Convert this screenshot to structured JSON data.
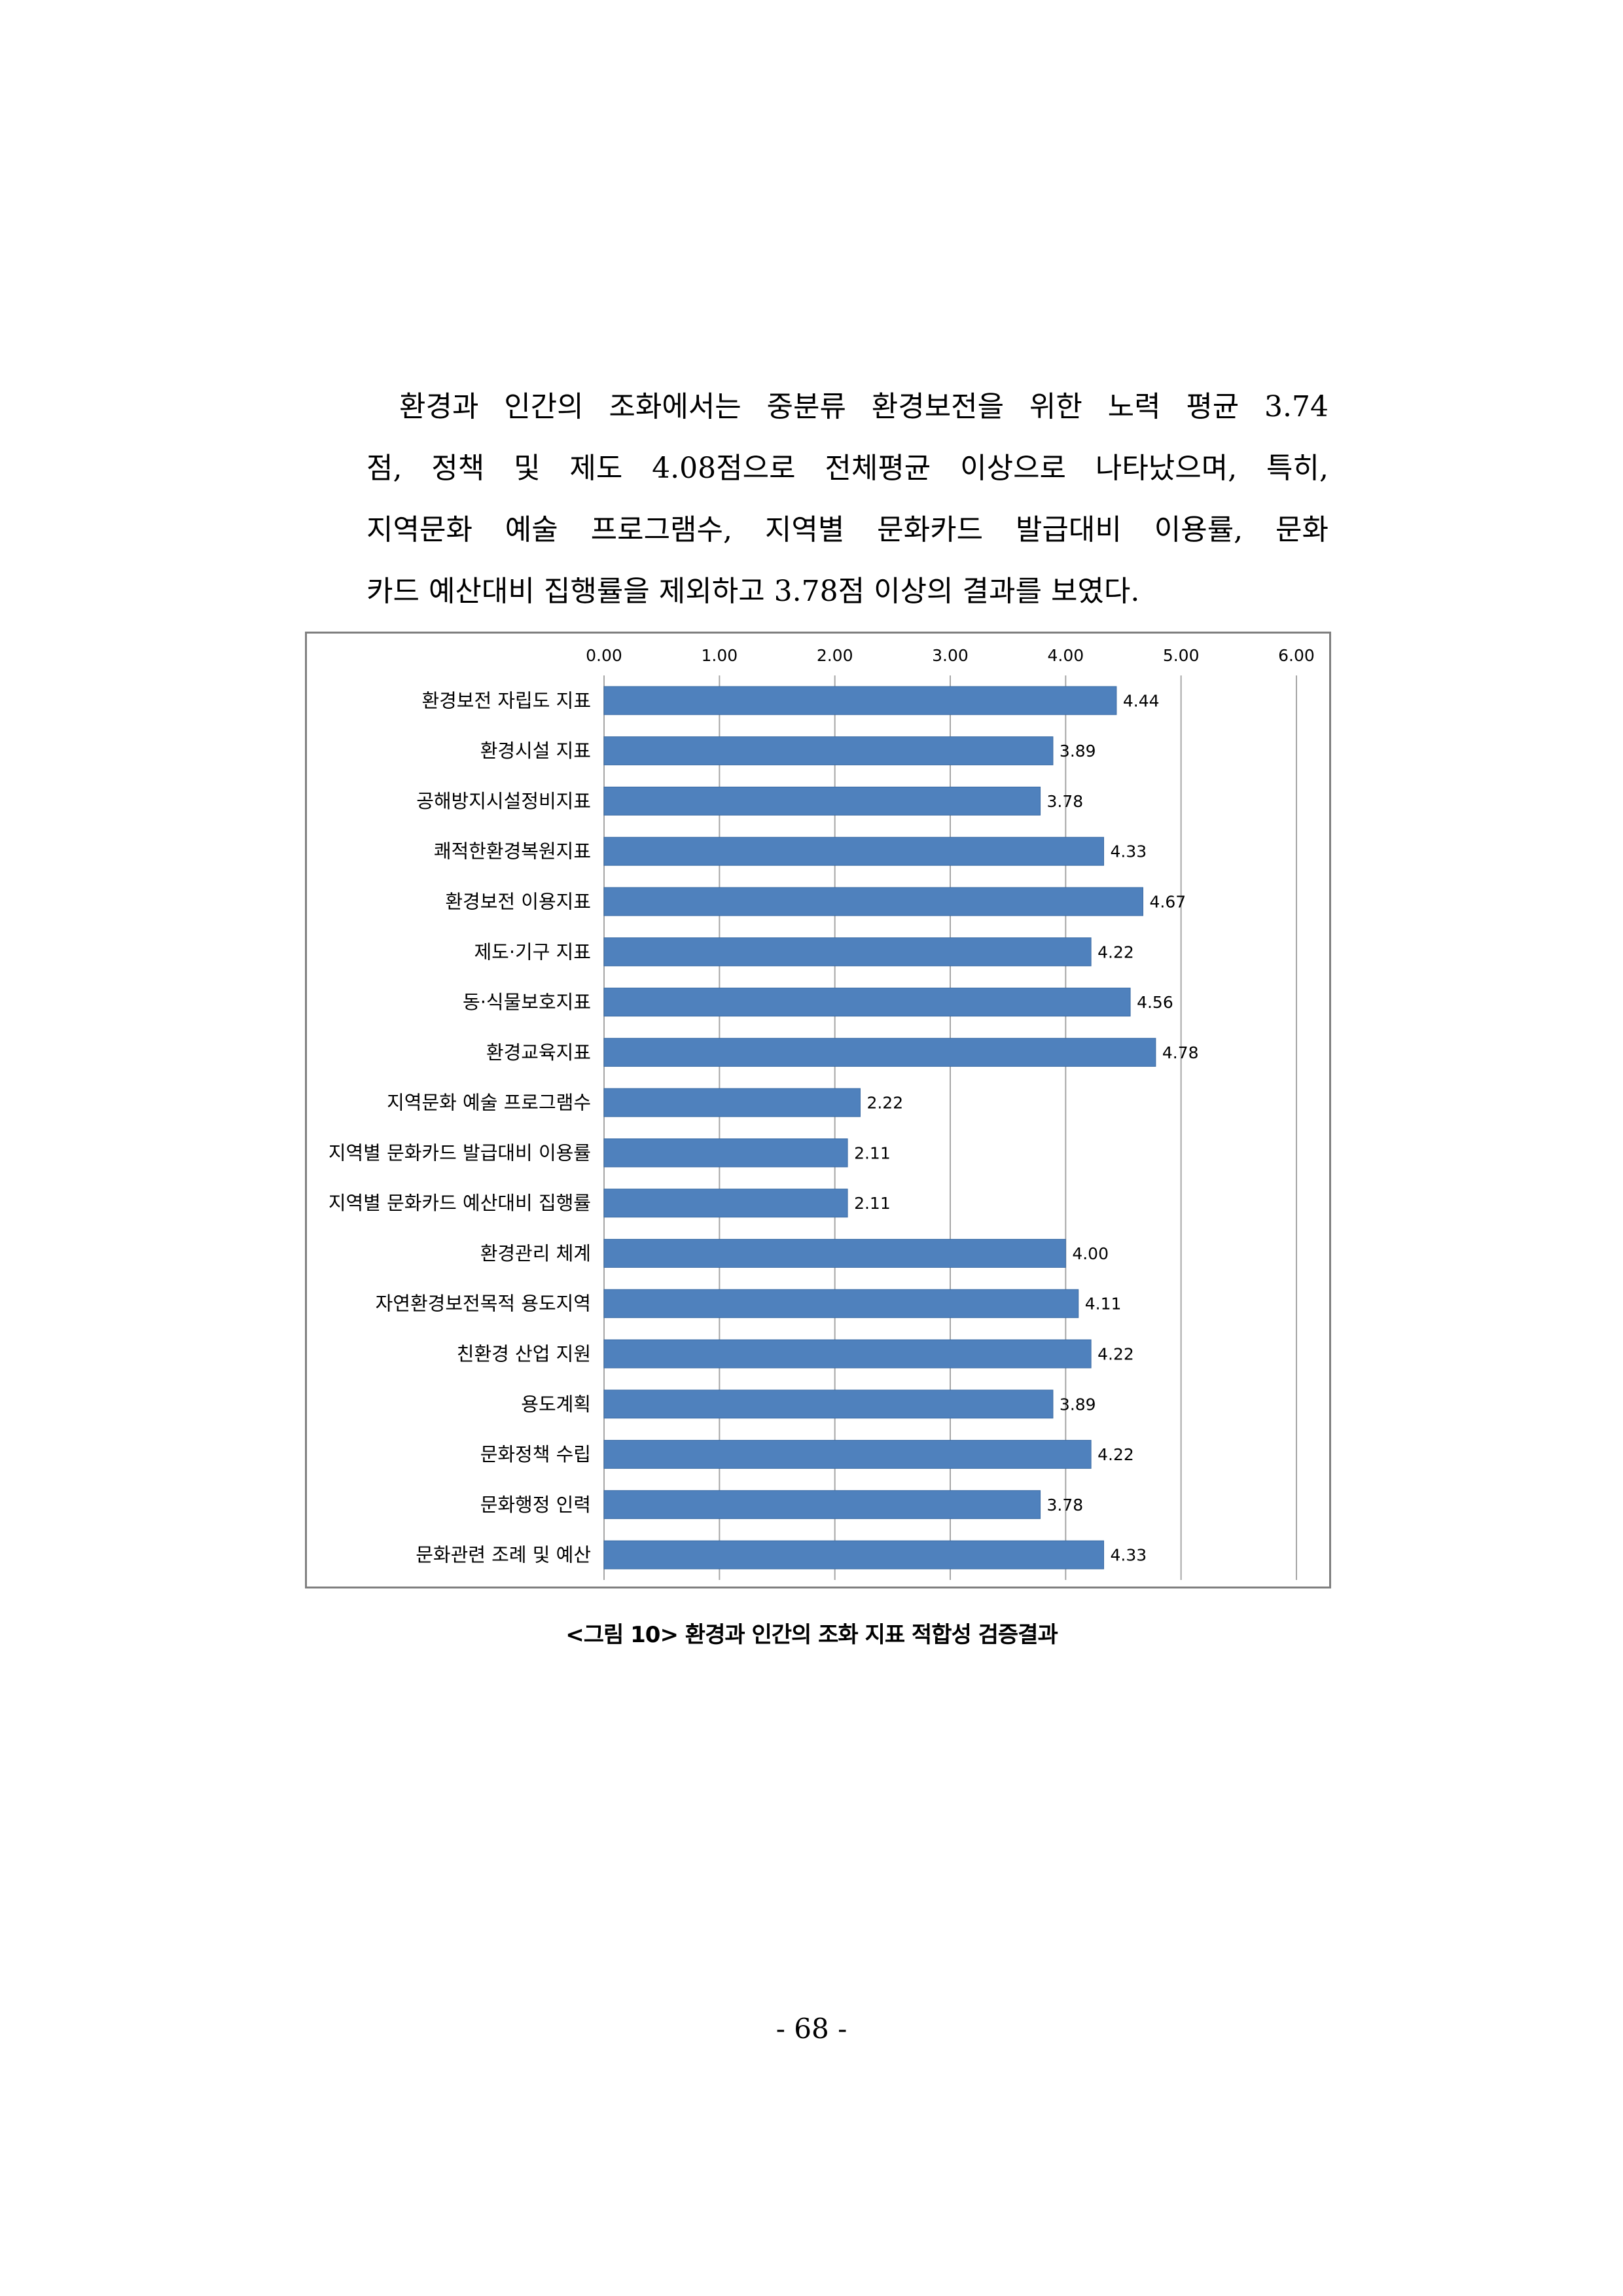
{
  "paragraph": {
    "lines": [
      "환경과 인간의 조화에서는 중분류 환경보전을 위한 노력 평균 3.74",
      "점, 정책 및 제도 4.08점으로 전체평균 이상으로 나타났으며, 특히,",
      "지역문화 예술 프로그램수, 지역별 문화카드 발급대비 이용률, 문화",
      "카드 예산대비 집행률을 제외하고 3.78점 이상의 결과를 보였다."
    ]
  },
  "chart_data": {
    "type": "bar",
    "orientation": "horizontal",
    "categories": [
      "환경보전 자립도 지표",
      "환경시설 지표",
      "공해방지시설정비지표",
      "쾌적한환경복원지표",
      "환경보전 이용지표",
      "제도·기구 지표",
      "동·식물보호지표",
      "환경교육지표",
      "지역문화 예술 프로그램수",
      "지역별 문화카드 발급대비 이용률",
      "지역별 문화카드 예산대비 집행률",
      "환경관리 체계",
      "자연환경보전목적 용도지역",
      "친환경 산업 지원",
      "용도계획",
      "문화정책 수립",
      "문화행정 인력",
      "문화관련 조례 및 예산"
    ],
    "values": [
      4.44,
      3.89,
      3.78,
      4.33,
      4.67,
      4.22,
      4.56,
      4.78,
      2.22,
      2.11,
      2.11,
      4.0,
      4.11,
      4.22,
      3.89,
      4.22,
      3.78,
      4.33
    ],
    "value_labels": [
      "4.44",
      "3.89",
      "3.78",
      "4.33",
      "4.67",
      "4.22",
      "4.56",
      "4.78",
      "2.22",
      "2.11",
      "2.11",
      "4.00",
      "4.11",
      "4.22",
      "3.89",
      "4.22",
      "3.78",
      "4.33"
    ],
    "xlim": [
      0,
      6
    ],
    "x_ticks": [
      "0.00",
      "1.00",
      "2.00",
      "3.00",
      "4.00",
      "5.00",
      "6.00"
    ],
    "x_axis_position": "top",
    "grid": true,
    "legend": "none",
    "bar_color": "#4f81bd",
    "gridline_color": "#a6a6a6"
  },
  "caption": "<그림 10> 환경과 인간의 조화 지표 적합성 검증결과",
  "page_number": "- 68 -"
}
